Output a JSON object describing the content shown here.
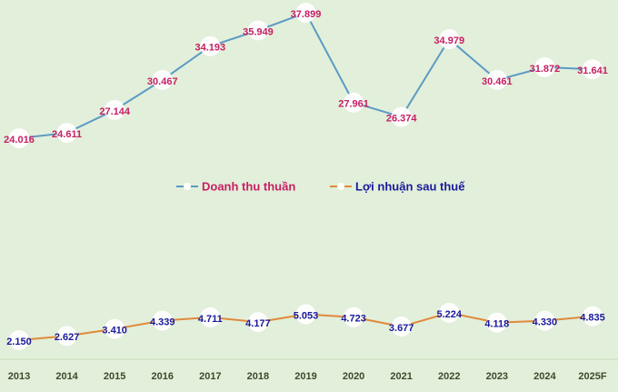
{
  "chart_data": {
    "type": "line",
    "categories": [
      "2013",
      "2014",
      "2015",
      "2016",
      "2017",
      "2018",
      "2019",
      "2020",
      "2021",
      "2022",
      "2023",
      "2024",
      "2025F"
    ],
    "series": [
      {
        "name": "Doanh thu thuần",
        "values": [
          24.016,
          24.611,
          27.144,
          30.467,
          34.193,
          35.949,
          37.899,
          27.961,
          26.374,
          34.979,
          30.461,
          31.872,
          31.641
        ],
        "labels": [
          "24.016",
          "24.611",
          "27.144",
          "30.467",
          "34.193",
          "35.949",
          "37.899",
          "27.961",
          "26.374",
          "34.979",
          "30.461",
          "31.872",
          "31.641"
        ],
        "line_color": "#5b9bc4",
        "label_color": "#c81e64"
      },
      {
        "name": "Lợi nhuận sau thuế",
        "values": [
          2.15,
          2.627,
          3.41,
          4.339,
          4.711,
          4.177,
          5.053,
          4.723,
          3.677,
          5.224,
          4.118,
          4.33,
          4.835
        ],
        "labels": [
          "2.150",
          "2.627",
          "3.410",
          "4.339",
          "4.711",
          "4.177",
          "5.053",
          "4.723",
          "3.677",
          "5.224",
          "4.118",
          "4.330",
          "4.835"
        ],
        "line_color": "#e08a3c",
        "label_color": "#1a1a9c"
      }
    ],
    "legend_placement": "center",
    "grid": false,
    "background": "#e2efda",
    "marker_color": "#ffffff"
  }
}
